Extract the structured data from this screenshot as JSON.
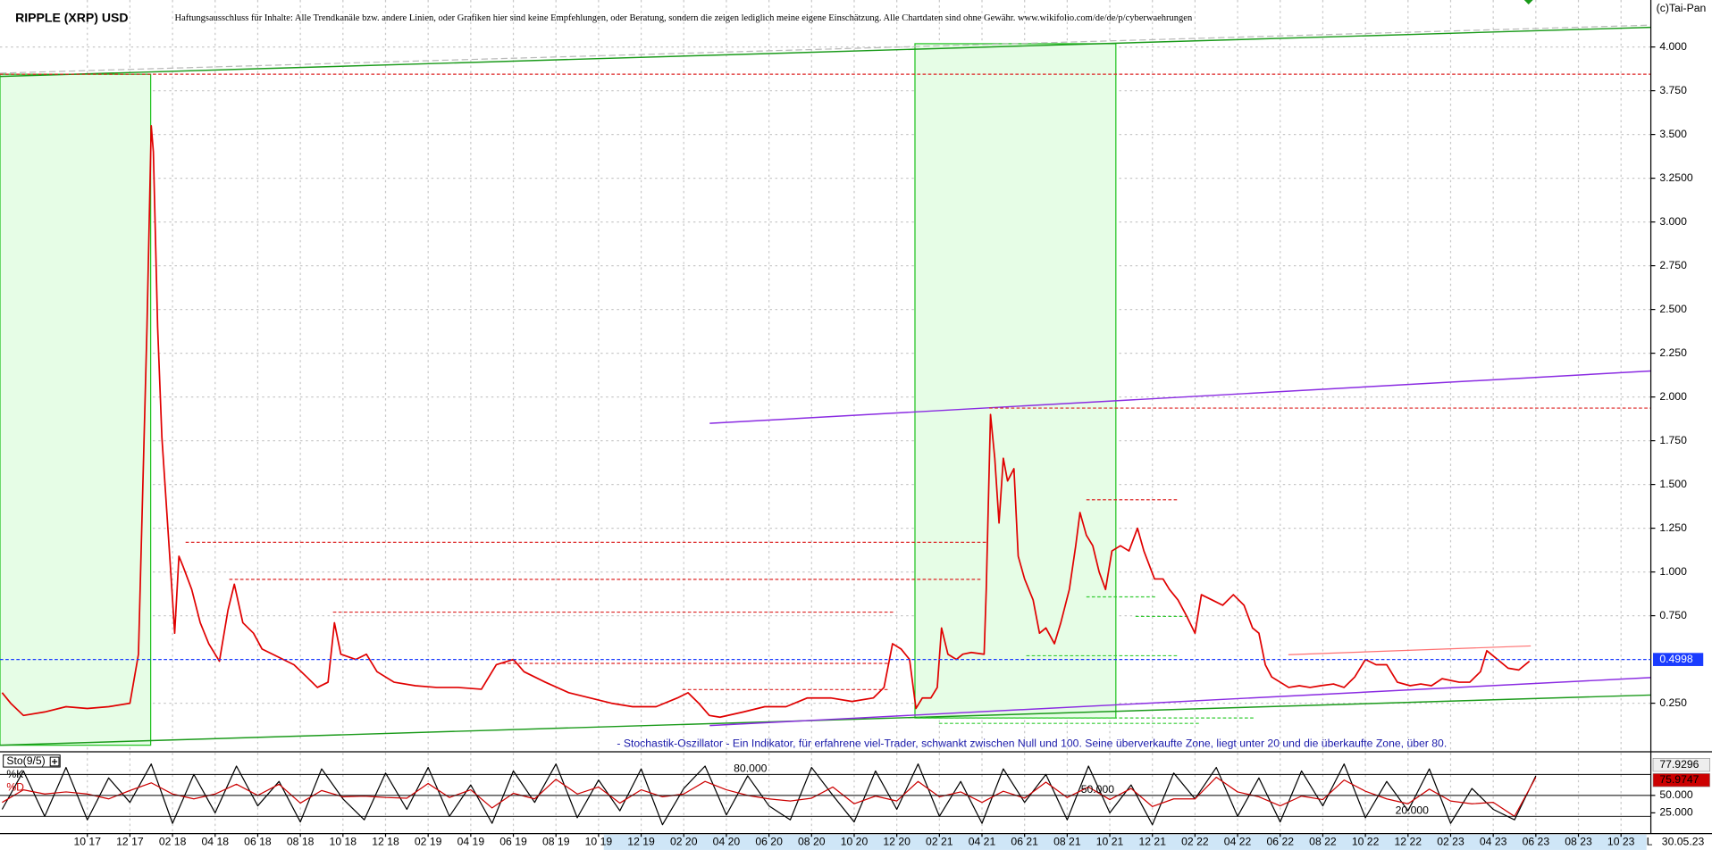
{
  "chart_data": [
    {
      "type": "line",
      "title": "RIPPLE (XRP) USD",
      "subtitle": "Haftungsausschluss für Inhalte: Alle Trendkanäle bzw. andere Linien, oder Grafiken hier sind keine Empfehlungen, oder Beratung, sondern die zeigen lediglich meine eigene Einschätzung. Alle Chartdaten sind ohne Gewähr. www.wikifolio.com/de/de/p/cyberwaehrungen",
      "source": "(c)Tai-Pan",
      "color": "#e00000",
      "x": [
        5.0,
        5.4,
        6.0,
        7.0,
        8.0,
        9.0,
        10.0,
        11.0,
        11.4,
        11.8,
        12.0,
        12.1,
        12.3,
        12.5,
        12.7,
        12.9,
        13.1,
        13.3,
        13.5,
        13.9,
        14.3,
        14.7,
        15.2,
        15.6,
        15.9,
        16.3,
        16.8,
        17.2,
        17.7,
        18.2,
        18.7,
        19.3,
        19.8,
        20.3,
        20.6,
        20.9,
        21.6,
        22.1,
        22.6,
        23.4,
        24.4,
        25.4,
        26.4,
        27.5,
        28.2,
        29.0,
        29.5,
        30.0,
        30.5,
        31.6,
        32.6,
        33.6,
        34.6,
        35.7,
        36.7,
        37.2,
        37.7,
        38.2,
        38.7,
        39.8,
        40.8,
        41.8,
        42.8,
        43.9,
        44.9,
        45.9,
        46.4,
        46.8,
        47.2,
        47.6,
        47.9,
        48.2,
        48.6,
        48.9,
        49.1,
        49.4,
        49.8,
        50.1,
        50.5,
        51.1,
        51.2,
        51.4,
        51.6,
        51.8,
        52.0,
        52.2,
        52.5,
        52.7,
        53.0,
        53.4,
        53.7,
        54.0,
        54.4,
        54.7,
        55.1,
        55.4,
        55.6,
        55.9,
        56.2,
        56.5,
        56.8,
        57.1,
        57.5,
        57.9,
        58.3,
        58.6,
        59.1,
        59.5,
        59.8,
        60.2,
        60.6,
        61.0,
        61.3,
        61.8,
        62.3,
        62.8,
        63.3,
        63.7,
        64.0,
        64.3,
        64.6,
        65.0,
        65.4,
        65.9,
        66.4,
        66.9,
        67.5,
        68.0,
        68.5,
        69.0,
        69.5,
        70.0,
        70.5,
        71.1,
        71.6,
        72.1,
        72.6,
        73.4,
        73.9,
        74.4,
        74.7,
        75.2,
        75.7,
        76.2,
        76.7
      ],
      "values": [
        0.31,
        0.25,
        0.18,
        0.2,
        0.23,
        0.22,
        0.23,
        0.25,
        0.53,
        2.4,
        3.55,
        3.4,
        2.4,
        1.77,
        1.4,
        1.03,
        0.65,
        1.09,
        1.03,
        0.9,
        0.71,
        0.59,
        0.49,
        0.78,
        0.93,
        0.71,
        0.65,
        0.56,
        0.53,
        0.5,
        0.47,
        0.4,
        0.34,
        0.37,
        0.71,
        0.53,
        0.5,
        0.53,
        0.43,
        0.37,
        0.35,
        0.34,
        0.34,
        0.33,
        0.47,
        0.5,
        0.43,
        0.4,
        0.37,
        0.31,
        0.28,
        0.25,
        0.23,
        0.23,
        0.28,
        0.31,
        0.25,
        0.18,
        0.17,
        0.2,
        0.23,
        0.23,
        0.28,
        0.28,
        0.26,
        0.28,
        0.34,
        0.59,
        0.56,
        0.5,
        0.22,
        0.28,
        0.28,
        0.34,
        0.68,
        0.53,
        0.5,
        0.53,
        0.54,
        0.53,
        0.9,
        1.9,
        1.65,
        1.28,
        1.65,
        1.52,
        1.59,
        1.09,
        0.96,
        0.84,
        0.65,
        0.68,
        0.59,
        0.71,
        0.9,
        1.15,
        1.34,
        1.21,
        1.15,
        1.0,
        0.9,
        1.12,
        1.15,
        1.12,
        1.25,
        1.12,
        0.96,
        0.96,
        0.9,
        0.84,
        0.75,
        0.65,
        0.87,
        0.84,
        0.81,
        0.87,
        0.81,
        0.68,
        0.65,
        0.47,
        0.4,
        0.37,
        0.34,
        0.35,
        0.34,
        0.35,
        0.36,
        0.34,
        0.4,
        0.5,
        0.47,
        0.47,
        0.37,
        0.35,
        0.36,
        0.35,
        0.39,
        0.37,
        0.37,
        0.43,
        0.55,
        0.5,
        0.45,
        0.44,
        0.49
      ],
      "current_value": 0.4998,
      "current_color": "#1a3cff",
      "xlim": [
        4.9,
        82.4
      ],
      "ylim": [
        0,
        4.25
      ],
      "yticks": [
        {
          "value": 0.25,
          "label": "0.250"
        },
        {
          "value": 0.75,
          "label": "0.750"
        },
        {
          "value": 1,
          "label": "1.000"
        },
        {
          "value": 1.25,
          "label": "1.250"
        },
        {
          "value": 1.5,
          "label": "1.500"
        },
        {
          "value": 1.75,
          "label": "1.750"
        },
        {
          "value": 2,
          "label": "2.000"
        },
        {
          "value": 2.25,
          "label": "2.250"
        },
        {
          "value": 2.5,
          "label": "2.500"
        },
        {
          "value": 2.75,
          "label": "2.750"
        },
        {
          "value": 3,
          "label": "3.000"
        },
        {
          "value": 3.25,
          "label": "3.2500"
        },
        {
          "value": 3.5,
          "label": "3.500"
        },
        {
          "value": 3.75,
          "label": "3.750"
        },
        {
          "value": 4,
          "label": "4.000"
        }
      ],
      "grid": true
    },
    {
      "type": "line",
      "title": "Sto(9/5)",
      "note": "- Stochastik-Oszillator - Ein Indikator, für erfahrene viel-Trader, schwankt zwischen Null und 100. Seine überverkaufte Zone, liegt unter 20 und die überkaufte Zone, über 80.",
      "date": "30.05.23",
      "axis_mode": "L",
      "x": [
        5,
        6,
        7,
        8,
        9,
        10,
        11,
        12,
        13,
        14,
        15,
        16,
        17,
        18,
        19,
        20,
        21,
        22,
        23,
        24,
        25,
        26,
        27,
        28,
        29,
        30,
        31,
        32,
        33,
        34,
        35,
        36,
        37,
        38,
        39,
        40,
        41,
        42,
        43,
        44,
        45,
        46,
        47,
        48,
        49,
        50,
        51,
        52,
        53,
        54,
        55,
        56,
        57,
        58,
        59,
        60,
        61,
        62,
        63,
        64,
        65,
        66,
        67,
        68,
        69,
        70,
        71,
        72,
        73,
        74,
        75,
        76,
        77
      ],
      "series": [
        {
          "name": "%K",
          "color": "#000000",
          "values": [
            30,
            85,
            20,
            90,
            15,
            75,
            40,
            95,
            10,
            80,
            25,
            92,
            35,
            70,
            12,
            88,
            45,
            15,
            82,
            30,
            90,
            20,
            65,
            10,
            85,
            40,
            95,
            18,
            72,
            28,
            88,
            8,
            60,
            92,
            22,
            78,
            35,
            15,
            90,
            50,
            12,
            85,
            30,
            95,
            20,
            70,
            10,
            88,
            40,
            80,
            15,
            92,
            25,
            65,
            8,
            82,
            45,
            90,
            20,
            75,
            12,
            85,
            35,
            95,
            18,
            70,
            28,
            88,
            10,
            60,
            30,
            15,
            77.9296
          ]
        },
        {
          "name": "%D",
          "color": "#cc0000",
          "values": [
            40,
            58,
            52,
            55,
            52,
            45,
            57,
            68,
            52,
            45,
            52,
            66,
            50,
            66,
            39,
            57,
            48,
            49,
            47,
            46,
            67,
            47,
            58,
            32,
            53,
            45,
            73,
            52,
            62,
            39,
            58,
            48,
            52,
            70,
            58,
            50,
            45,
            42,
            46,
            62,
            38,
            49,
            42,
            70,
            48,
            55,
            40,
            56,
            46,
            69,
            47,
            62,
            44,
            60,
            34,
            45,
            45,
            76,
            55,
            48,
            35,
            49,
            44,
            72,
            56,
            45,
            38,
            59,
            42,
            38,
            40,
            20,
            75.9747
          ]
        }
      ],
      "levels": [
        {
          "value": 80,
          "label": "80.000"
        },
        {
          "value": 50,
          "label": "50.000"
        },
        {
          "value": 20,
          "label": "20.000"
        }
      ],
      "xlim": [
        4.9,
        82.4
      ],
      "ylim": [
        0,
        100
      ],
      "yticks": [
        {
          "value": 25,
          "label": "25.000"
        },
        {
          "value": 50,
          "label": "50.000"
        }
      ],
      "xticks": [
        {
          "value": 9,
          "label": "10 17"
        },
        {
          "value": 11,
          "label": "12 17"
        },
        {
          "value": 13,
          "label": "02 18"
        },
        {
          "value": 15,
          "label": "04 18"
        },
        {
          "value": 17,
          "label": "06 18"
        },
        {
          "value": 19,
          "label": "08 18"
        },
        {
          "value": 21,
          "label": "10 18"
        },
        {
          "value": 23,
          "label": "12 18"
        },
        {
          "value": 25,
          "label": "02 19"
        },
        {
          "value": 27,
          "label": "04 19"
        },
        {
          "value": 29,
          "label": "06 19"
        },
        {
          "value": 31,
          "label": "08 19"
        },
        {
          "value": 33,
          "label": "10 19"
        },
        {
          "value": 35,
          "label": "12 19"
        },
        {
          "value": 37,
          "label": "02 20"
        },
        {
          "value": 39,
          "label": "04 20"
        },
        {
          "value": 41,
          "label": "06 20"
        },
        {
          "value": 43,
          "label": "08 20"
        },
        {
          "value": 45,
          "label": "10 20"
        },
        {
          "value": 47,
          "label": "12 20"
        },
        {
          "value": 49,
          "label": "02 21"
        },
        {
          "value": 51,
          "label": "04 21"
        },
        {
          "value": 53,
          "label": "06 21"
        },
        {
          "value": 55,
          "label": "08 21"
        },
        {
          "value": 57,
          "label": "10 21"
        },
        {
          "value": 59,
          "label": "12 21"
        },
        {
          "value": 61,
          "label": "02 22"
        },
        {
          "value": 63,
          "label": "04 22"
        },
        {
          "value": 65,
          "label": "06 22"
        },
        {
          "value": 67,
          "label": "08 22"
        },
        {
          "value": 69,
          "label": "10 22"
        },
        {
          "value": 71,
          "label": "12 22"
        },
        {
          "value": 73,
          "label": "02 23"
        },
        {
          "value": 75,
          "label": "04 23"
        },
        {
          "value": 77,
          "label": "06 23"
        },
        {
          "value": 79,
          "label": "08 23"
        },
        {
          "value": 81,
          "label": "10 23"
        }
      ],
      "grid": true
    }
  ]
}
